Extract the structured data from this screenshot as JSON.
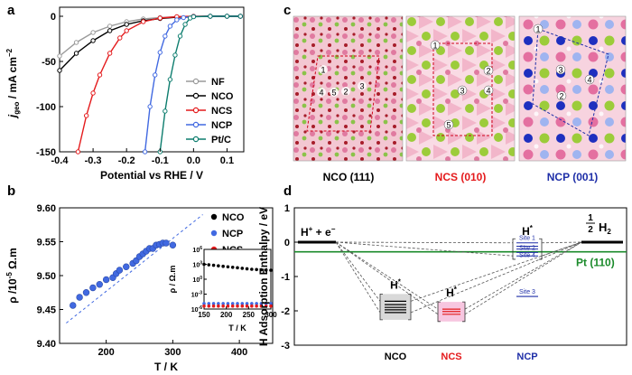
{
  "panels": {
    "a": {
      "letter": "a",
      "ylabel_main": "j",
      "ylabel_sub": "geo",
      "ylabel_unit": " / mA cm",
      "ylabel_exp": "−2",
      "xlabel": "Potential vs RHE / V",
      "chart_data": {
        "type": "line",
        "xlim": [
          -0.4,
          0.15
        ],
        "ylim": [
          -150,
          10
        ],
        "xticks": [
          "-0.4",
          "-0.3",
          "-0.2",
          "-0.1",
          "0.0",
          "0.1"
        ],
        "yticks": [
          "0",
          "-50",
          "-100",
          "-150"
        ],
        "series": [
          {
            "name": "NF",
            "color": "#9a9a9a",
            "x": [
              -0.4,
              -0.35,
              -0.3,
              -0.25,
              -0.2,
              -0.15,
              -0.1,
              -0.05,
              0.0,
              0.05,
              0.1,
              0.14
            ],
            "y": [
              -44,
              -29,
              -18,
              -11,
              -6,
              -3,
              -1.5,
              -0.6,
              -0.2,
              0,
              0,
              0
            ]
          },
          {
            "name": "NCO",
            "color": "#000000",
            "x": [
              -0.4,
              -0.35,
              -0.3,
              -0.25,
              -0.2,
              -0.15,
              -0.1,
              -0.05,
              0.0,
              0.05,
              0.1,
              0.14
            ],
            "y": [
              -60,
              -41,
              -27,
              -16,
              -9,
              -5,
              -2.5,
              -1,
              -0.3,
              0,
              0,
              0
            ]
          },
          {
            "name": "NCS",
            "color": "#e41a1c",
            "x": [
              -0.345,
              -0.32,
              -0.3,
              -0.28,
              -0.25,
              -0.22,
              -0.2,
              -0.15,
              -0.1,
              -0.05,
              0.0,
              0.05,
              0.1,
              0.14
            ],
            "y": [
              -150,
              -110,
              -85,
              -65,
              -41,
              -24,
              -16,
              -6,
              -2,
              -0.5,
              0,
              0,
              0,
              0
            ]
          },
          {
            "name": "NCP",
            "color": "#4169e1",
            "x": [
              -0.145,
              -0.13,
              -0.115,
              -0.1,
              -0.085,
              -0.07,
              -0.05,
              -0.03,
              0.0,
              0.05,
              0.1,
              0.14
            ],
            "y": [
              -150,
              -100,
              -65,
              -40,
              -22,
              -11,
              -4,
              -1.5,
              -0.3,
              0,
              0,
              0
            ]
          },
          {
            "name": "Pt/C",
            "color": "#0d7d6e",
            "x": [
              -0.1,
              -0.085,
              -0.07,
              -0.055,
              -0.04,
              -0.025,
              -0.01,
              0.0,
              0.05,
              0.1,
              0.14
            ],
            "y": [
              -150,
              -105,
              -70,
              -43,
              -22,
              -9,
              -2,
              -0.5,
              0,
              0,
              0
            ]
          }
        ]
      }
    },
    "b": {
      "letter": "b",
      "ylabel": "ρ /10",
      "ylabel_exp": "-5",
      "ylabel_unit": " Ω.m",
      "xlabel": "T / K",
      "chart_data": {
        "type": "scatter",
        "xlim": [
          130,
          450
        ],
        "ylim": [
          9.4,
          9.6
        ],
        "xticks": [
          "200",
          "300",
          "400"
        ],
        "yticks": [
          "9.60",
          "9.55",
          "9.50",
          "9.45",
          "9.40"
        ],
        "series": [
          {
            "name": "NCO",
            "color": "#000000",
            "x": [],
            "y": []
          },
          {
            "name": "NCP",
            "color": "#4169e1",
            "x": [
              150,
              160,
              170,
              180,
              190,
              200,
              210,
              215,
              220,
              230,
              240,
              245,
              250,
              255,
              260,
              265,
              270,
              275,
              280,
              285,
              290,
              300
            ],
            "y": [
              9.456,
              9.468,
              9.475,
              9.482,
              9.487,
              9.494,
              9.497,
              9.503,
              9.508,
              9.513,
              9.518,
              9.522,
              9.528,
              9.532,
              9.536,
              9.54,
              9.54,
              9.545,
              9.546,
              9.548,
              9.548,
              9.545
            ]
          },
          {
            "name": "NCS",
            "color": "#e41a1c",
            "x": [],
            "y": []
          }
        ],
        "fit_line": {
          "x": [
            140,
            345
          ],
          "y": [
            9.43,
            9.59
          ]
        },
        "inset": {
          "ylabel": "ρ / Ω.m",
          "xlabel": "T / K",
          "xticks": [
            "150",
            "200",
            "250",
            "300"
          ],
          "ytick_base": "10",
          "ytick_exps": [
            "6",
            "3",
            "0",
            "-3",
            "-6"
          ],
          "series": [
            {
              "name": "NCO",
              "color": "#000000",
              "log_rho": [
                3.0,
                2.9,
                2.8,
                2.7,
                2.6,
                2.5,
                2.4,
                2.3,
                2.2,
                2.1,
                2.0,
                1.95,
                1.9,
                1.85,
                1.8
              ]
            },
            {
              "name": "NCP",
              "color": "#4169e1",
              "log_rho": [
                -4.9,
                -4.9,
                -4.9,
                -4.9,
                -4.9,
                -4.9,
                -4.9,
                -4.9,
                -4.9,
                -4.9,
                -4.9,
                -4.9,
                -4.9,
                -4.9,
                -4.9
              ]
            },
            {
              "name": "NCS",
              "color": "#e41a1c",
              "log_rho": [
                -5.4,
                -5.4,
                -5.4,
                -5.4,
                -5.4,
                -5.4,
                -5.4,
                -5.4,
                -5.4,
                -5.4,
                -5.4,
                -5.4,
                -5.4,
                -5.4,
                -5.4
              ]
            }
          ]
        }
      }
    },
    "c": {
      "letter": "c",
      "captions": [
        "NCO (111)",
        "NCS (010)",
        "NCP (001)"
      ],
      "caption_colors": [
        "#000000",
        "#e41a1c",
        "#1f2fa8"
      ],
      "site_labels_nco": [
        "1",
        "2",
        "3",
        "4",
        "5"
      ],
      "site_labels_ncs": [
        "1",
        "2",
        "3",
        "4",
        "5"
      ],
      "site_labels_ncp": [
        "1",
        "2",
        "3",
        "4"
      ]
    },
    "d": {
      "letter": "d",
      "ylabel": "H Adsorption Enthalpy / eV",
      "yticks": [
        "1",
        "0",
        "-1",
        "-2",
        "-3"
      ],
      "ylim": [
        -3,
        1
      ],
      "label_initial": "H",
      "label_initial_sup": "+",
      "label_initial_rest": " + e",
      "label_initial_sup2": "−",
      "label_final_num": "1",
      "label_final_den": "2",
      "label_final_rest": "H",
      "label_final_sub": "2",
      "pt_label": "Pt (110)",
      "pt_value": -0.28,
      "h_star": "H",
      "h_star_sup": "*",
      "xcats": [
        {
          "label": "NCO",
          "color": "#000000"
        },
        {
          "label": "NCS",
          "color": "#e41a1c"
        },
        {
          "label": "NCP",
          "color": "#1f2fa8"
        }
      ],
      "ncp_sites": [
        "Site 1",
        "Site 2",
        "Site 4",
        "Site 3"
      ],
      "nco_levels": [
        -1.72,
        -1.82,
        -1.9,
        -1.97,
        -2.05
      ],
      "ncs_levels": [
        -1.95,
        -2.02,
        -2.1
      ],
      "ncp_levels": [
        -0.02,
        -0.12,
        -0.2,
        -0.3,
        -0.4,
        -1.58
      ]
    }
  }
}
